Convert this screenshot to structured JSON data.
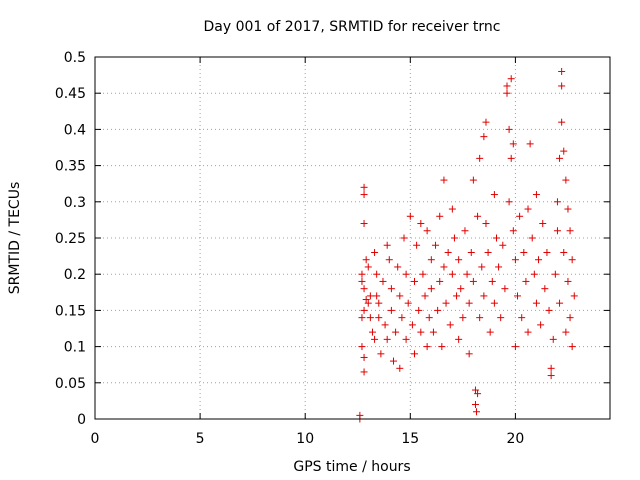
{
  "chart_data": {
    "type": "scatter",
    "title": "Day 001 of 2017, SRMTID for receiver trnc",
    "xlabel": "GPS time / hours",
    "ylabel": "SRMTID / TECUs",
    "xlim": [
      0,
      24.5
    ],
    "ylim": [
      0,
      0.5
    ],
    "xticks": [
      0,
      5,
      10,
      15,
      20
    ],
    "yticks": [
      0,
      0.05,
      0.1,
      0.15,
      0.2,
      0.25,
      0.3,
      0.35,
      0.4,
      0.45,
      0.5
    ],
    "grid": true,
    "marker": "+",
    "color": "#e00000",
    "series": [
      {
        "points": [
          [
            12.6,
            0.0
          ],
          [
            12.6,
            0.005
          ],
          [
            12.8,
            0.32
          ],
          [
            12.8,
            0.31
          ],
          [
            12.8,
            0.27
          ],
          [
            12.9,
            0.22
          ],
          [
            12.7,
            0.2
          ],
          [
            12.7,
            0.19
          ],
          [
            12.8,
            0.18
          ],
          [
            12.9,
            0.165
          ],
          [
            13.0,
            0.16
          ],
          [
            12.7,
            0.14
          ],
          [
            12.8,
            0.15
          ],
          [
            12.7,
            0.1
          ],
          [
            12.8,
            0.085
          ],
          [
            12.8,
            0.065
          ],
          [
            13.0,
            0.21
          ],
          [
            13.1,
            0.17
          ],
          [
            13.2,
            0.12
          ],
          [
            13.1,
            0.14
          ],
          [
            13.3,
            0.23
          ],
          [
            13.4,
            0.2
          ],
          [
            13.4,
            0.17
          ],
          [
            13.5,
            0.14
          ],
          [
            13.3,
            0.11
          ],
          [
            13.6,
            0.09
          ],
          [
            13.5,
            0.16
          ],
          [
            13.7,
            0.19
          ],
          [
            13.8,
            0.13
          ],
          [
            13.9,
            0.24
          ],
          [
            13.9,
            0.11
          ],
          [
            14.0,
            0.22
          ],
          [
            14.1,
            0.15
          ],
          [
            14.2,
            0.08
          ],
          [
            14.1,
            0.18
          ],
          [
            14.3,
            0.12
          ],
          [
            14.4,
            0.21
          ],
          [
            14.5,
            0.17
          ],
          [
            14.5,
            0.07
          ],
          [
            14.6,
            0.14
          ],
          [
            14.7,
            0.25
          ],
          [
            14.8,
            0.2
          ],
          [
            14.8,
            0.11
          ],
          [
            14.9,
            0.16
          ],
          [
            15.0,
            0.28
          ],
          [
            15.1,
            0.13
          ],
          [
            15.2,
            0.19
          ],
          [
            15.2,
            0.09
          ],
          [
            15.3,
            0.24
          ],
          [
            15.4,
            0.15
          ],
          [
            15.5,
            0.27
          ],
          [
            15.5,
            0.12
          ],
          [
            15.6,
            0.2
          ],
          [
            15.7,
            0.17
          ],
          [
            15.8,
            0.26
          ],
          [
            15.8,
            0.1
          ],
          [
            15.9,
            0.14
          ],
          [
            16.0,
            0.22
          ],
          [
            16.0,
            0.18
          ],
          [
            16.1,
            0.12
          ],
          [
            16.2,
            0.24
          ],
          [
            16.3,
            0.15
          ],
          [
            16.4,
            0.28
          ],
          [
            16.4,
            0.19
          ],
          [
            16.5,
            0.1
          ],
          [
            16.6,
            0.33
          ],
          [
            16.6,
            0.21
          ],
          [
            16.7,
            0.16
          ],
          [
            16.8,
            0.23
          ],
          [
            16.9,
            0.13
          ],
          [
            17.0,
            0.29
          ],
          [
            17.0,
            0.2
          ],
          [
            17.1,
            0.25
          ],
          [
            17.2,
            0.17
          ],
          [
            17.3,
            0.11
          ],
          [
            17.3,
            0.22
          ],
          [
            17.4,
            0.18
          ],
          [
            17.5,
            0.14
          ],
          [
            17.6,
            0.26
          ],
          [
            17.7,
            0.2
          ],
          [
            17.8,
            0.16
          ],
          [
            17.8,
            0.09
          ],
          [
            17.9,
            0.23
          ],
          [
            18.0,
            0.33
          ],
          [
            18.0,
            0.19
          ],
          [
            18.1,
            0.04
          ],
          [
            18.1,
            0.02
          ],
          [
            18.15,
            0.01
          ],
          [
            18.2,
            0.035
          ],
          [
            18.2,
            0.28
          ],
          [
            18.3,
            0.36
          ],
          [
            18.3,
            0.14
          ],
          [
            18.4,
            0.21
          ],
          [
            18.5,
            0.39
          ],
          [
            18.5,
            0.17
          ],
          [
            18.6,
            0.41
          ],
          [
            18.6,
            0.27
          ],
          [
            18.7,
            0.23
          ],
          [
            18.8,
            0.12
          ],
          [
            18.9,
            0.19
          ],
          [
            19.0,
            0.31
          ],
          [
            19.0,
            0.16
          ],
          [
            19.1,
            0.25
          ],
          [
            19.2,
            0.21
          ],
          [
            19.3,
            0.14
          ],
          [
            19.4,
            0.24
          ],
          [
            19.5,
            0.18
          ],
          [
            19.6,
            0.46
          ],
          [
            19.6,
            0.45
          ],
          [
            19.7,
            0.4
          ],
          [
            19.7,
            0.3
          ],
          [
            19.8,
            0.47
          ],
          [
            19.8,
            0.36
          ],
          [
            19.9,
            0.38
          ],
          [
            19.9,
            0.26
          ],
          [
            20.0,
            0.22
          ],
          [
            20.0,
            0.1
          ],
          [
            20.1,
            0.17
          ],
          [
            20.2,
            0.28
          ],
          [
            20.3,
            0.14
          ],
          [
            20.4,
            0.23
          ],
          [
            20.5,
            0.19
          ],
          [
            20.6,
            0.29
          ],
          [
            20.6,
            0.12
          ],
          [
            20.7,
            0.38
          ],
          [
            20.8,
            0.25
          ],
          [
            20.9,
            0.2
          ],
          [
            21.0,
            0.16
          ],
          [
            21.0,
            0.31
          ],
          [
            21.1,
            0.22
          ],
          [
            21.2,
            0.13
          ],
          [
            21.3,
            0.27
          ],
          [
            21.4,
            0.18
          ],
          [
            21.5,
            0.23
          ],
          [
            21.6,
            0.15
          ],
          [
            21.7,
            0.07
          ],
          [
            21.7,
            0.06
          ],
          [
            21.8,
            0.11
          ],
          [
            21.9,
            0.2
          ],
          [
            22.0,
            0.26
          ],
          [
            22.0,
            0.3
          ],
          [
            22.1,
            0.36
          ],
          [
            22.1,
            0.16
          ],
          [
            22.2,
            0.48
          ],
          [
            22.2,
            0.46
          ],
          [
            22.2,
            0.41
          ],
          [
            22.3,
            0.37
          ],
          [
            22.3,
            0.23
          ],
          [
            22.4,
            0.33
          ],
          [
            22.4,
            0.12
          ],
          [
            22.5,
            0.29
          ],
          [
            22.5,
            0.19
          ],
          [
            22.6,
            0.26
          ],
          [
            22.6,
            0.14
          ],
          [
            22.7,
            0.22
          ],
          [
            22.7,
            0.1
          ],
          [
            22.8,
            0.17
          ]
        ]
      }
    ]
  }
}
